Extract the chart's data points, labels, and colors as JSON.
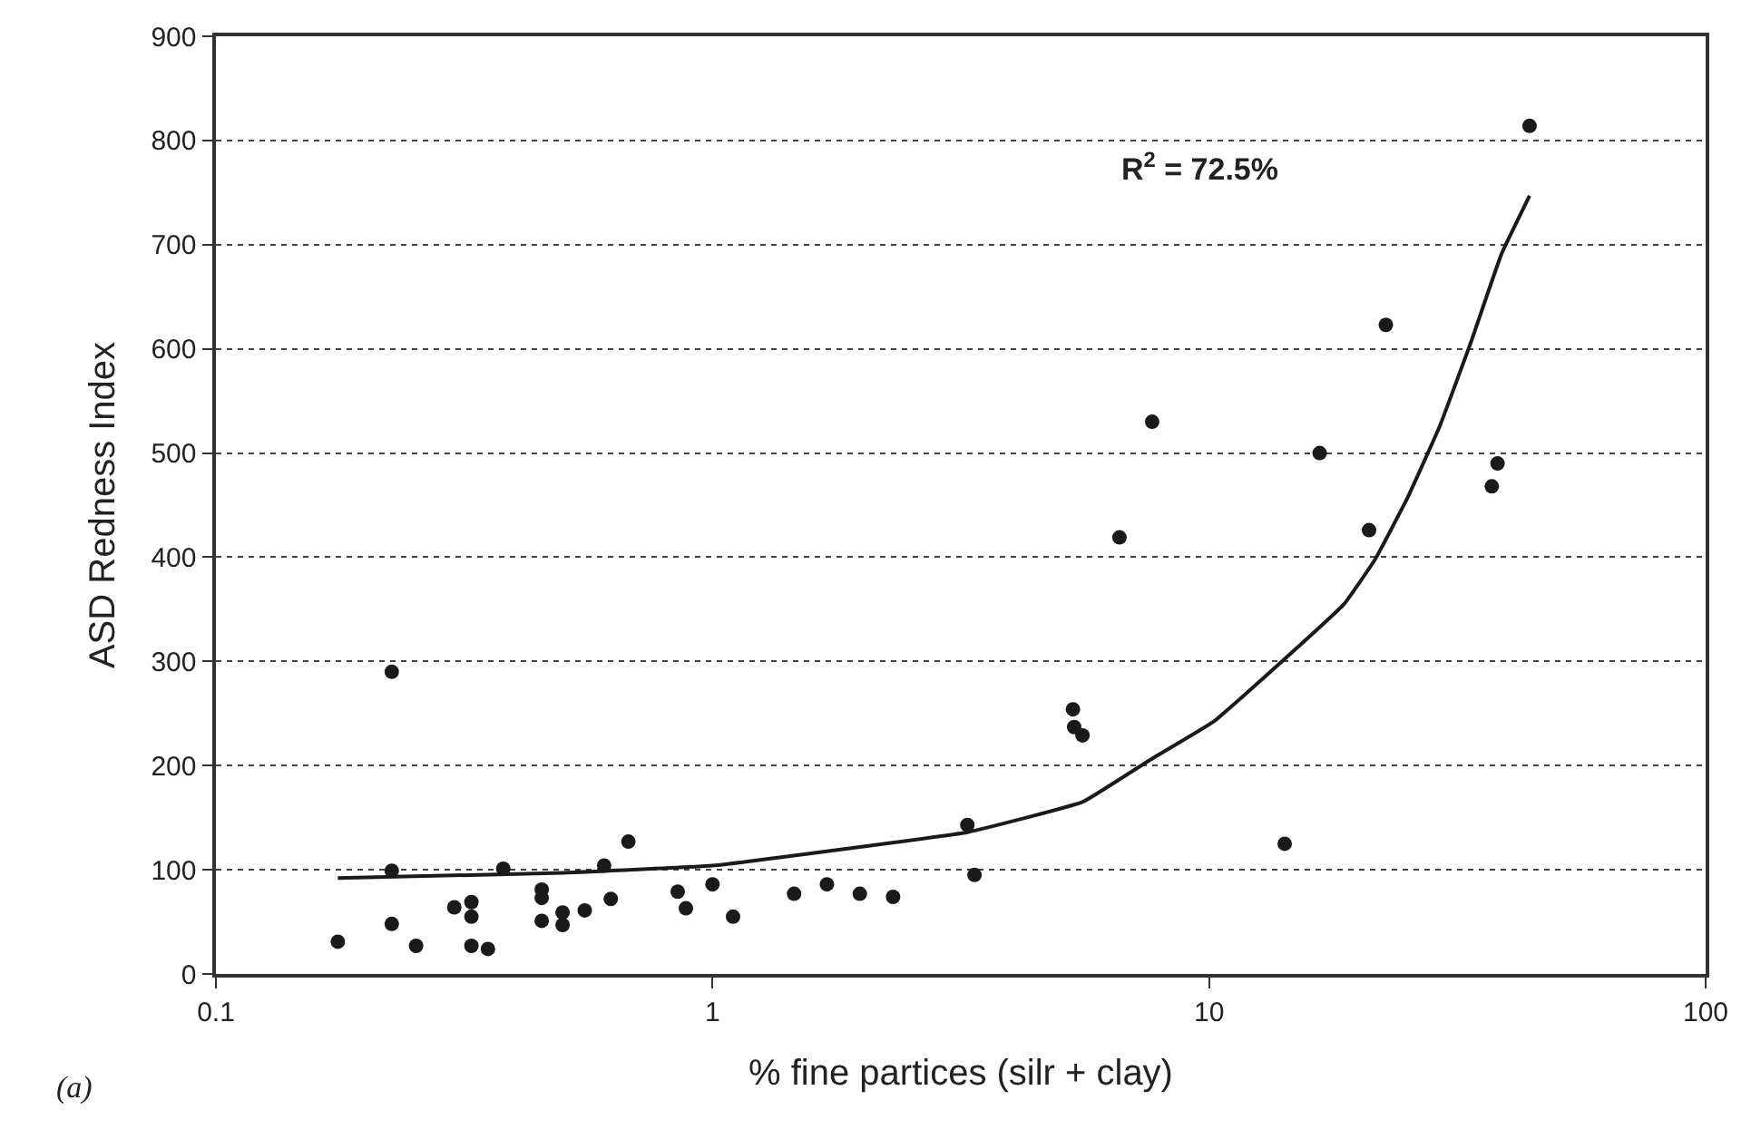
{
  "chart_data": {
    "type": "scatter",
    "xlabel": "% fine partices (silr + clay)",
    "ylabel": "ASD Redness Index",
    "log": "x",
    "xlim": [
      0.1,
      100
    ],
    "xticks": [
      0.1,
      1,
      10,
      100
    ],
    "ylim": [
      0,
      900
    ],
    "yticks": [
      0,
      100,
      200,
      300,
      400,
      500,
      600,
      700,
      800,
      900
    ],
    "grid": "y",
    "marker": "circle",
    "annotations": [
      "R$^{2}$ = 72.5%",
      "(a)"
    ],
    "series": [
      {
        "color": "#1a1a1a",
        "x": [
          0.176,
          0.226,
          0.226,
          0.226,
          0.253,
          0.302,
          0.327,
          0.327,
          0.327,
          0.353,
          0.379,
          0.453,
          0.453,
          0.453,
          0.499,
          0.499,
          0.553,
          0.605,
          0.624,
          0.677,
          0.851,
          0.884,
          1.0,
          1.1,
          1.46,
          1.7,
          1.98,
          2.31,
          3.26,
          3.37,
          5.32,
          5.35,
          5.56,
          6.6,
          7.68,
          14.2,
          16.7,
          21.0,
          22.7,
          37.1,
          38.1,
          44.2
        ],
        "values": [
          31,
          290,
          99,
          48,
          27,
          64,
          69,
          55,
          27,
          24,
          101,
          81,
          73,
          51,
          59,
          47,
          61,
          104,
          72,
          127,
          79,
          63,
          86,
          55,
          77,
          86,
          77,
          74,
          143,
          95,
          254,
          237,
          229,
          419,
          530,
          125,
          500,
          426,
          623,
          468,
          490,
          814
        ]
      },
      {
        "type": "line",
        "color": "#1a1a1a",
        "marker": "none",
        "x": [
          0.176,
          0.5,
          1.0,
          2.06,
          3.26,
          5.56,
          7.58,
          10.2,
          13.8,
          18.7,
          21.6,
          25.1,
          29.1,
          33.6,
          38.8,
          44.2
        ],
        "values": [
          92,
          97,
          104,
          123,
          136,
          165,
          205,
          242,
          297,
          355,
          398,
          457,
          525,
          605,
          691,
          747
        ]
      }
    ]
  }
}
